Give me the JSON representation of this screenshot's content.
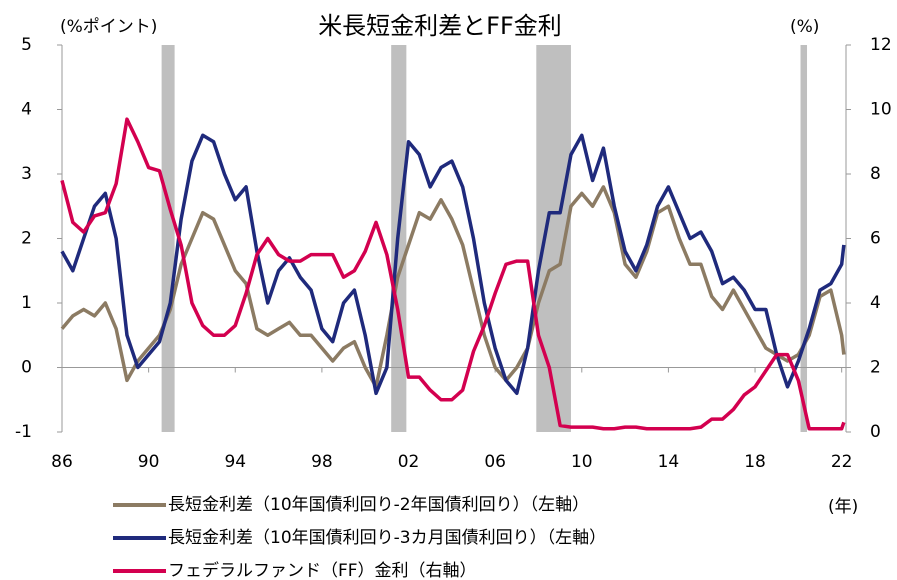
{
  "chart_data": {
    "type": "line",
    "title": "米長短金利差とFF金利",
    "y_label": "(%ポイント)",
    "y2_label": "(%)",
    "x_label": "(年)",
    "x": [
      1986,
      1986.5,
      1987,
      1987.5,
      1988,
      1988.5,
      1989,
      1989.5,
      1990,
      1990.5,
      1991,
      1991.5,
      1992,
      1992.5,
      1993,
      1993.5,
      1994,
      1994.5,
      1995,
      1995.5,
      1996,
      1996.5,
      1997,
      1997.5,
      1998,
      1998.5,
      1999,
      1999.5,
      2000,
      2000.5,
      2001,
      2001.5,
      2002,
      2002.5,
      2003,
      2003.5,
      2004,
      2004.5,
      2005,
      2005.5,
      2006,
      2006.5,
      2007,
      2007.5,
      2008,
      2008.5,
      2009,
      2009.5,
      2010,
      2010.5,
      2011,
      2011.5,
      2012,
      2012.5,
      2013,
      2013.5,
      2014,
      2014.5,
      2015,
      2015.5,
      2016,
      2016.5,
      2017,
      2017.5,
      2018,
      2018.5,
      2019,
      2019.5,
      2020,
      2020.5,
      2021,
      2021.5,
      2022,
      2022.1
    ],
    "series": [
      {
        "name": "長短金利差（10年国債利回り-2年国債利回り）（左軸）",
        "color": "#8c7b63",
        "axis": "y",
        "values": [
          0.6,
          0.8,
          0.9,
          0.8,
          1.0,
          0.6,
          -0.2,
          0.1,
          0.3,
          0.5,
          0.9,
          1.6,
          2.0,
          2.4,
          2.3,
          1.9,
          1.5,
          1.3,
          0.6,
          0.5,
          0.6,
          0.7,
          0.5,
          0.5,
          0.3,
          0.1,
          0.3,
          0.4,
          0.0,
          -0.3,
          0.5,
          1.4,
          1.9,
          2.4,
          2.3,
          2.6,
          2.3,
          1.9,
          1.2,
          0.5,
          0.0,
          -0.2,
          0.0,
          0.3,
          1.0,
          1.5,
          1.6,
          2.5,
          2.7,
          2.5,
          2.8,
          2.4,
          1.6,
          1.4,
          1.8,
          2.4,
          2.5,
          2.0,
          1.6,
          1.6,
          1.1,
          0.9,
          1.2,
          0.9,
          0.6,
          0.3,
          0.2,
          0.1,
          0.2,
          0.5,
          1.1,
          1.2,
          0.5,
          0.2
        ]
      },
      {
        "name": "長短金利差（10年国債利回り-3カ月国債利回り）（左軸）",
        "color": "#1f2a7c",
        "axis": "y",
        "values": [
          1.8,
          1.5,
          2.0,
          2.5,
          2.7,
          2.0,
          0.5,
          0.0,
          0.2,
          0.4,
          1.0,
          2.3,
          3.2,
          3.6,
          3.5,
          3.0,
          2.6,
          2.8,
          1.8,
          1.0,
          1.5,
          1.7,
          1.4,
          1.2,
          0.6,
          0.4,
          1.0,
          1.2,
          0.5,
          -0.4,
          0.0,
          2.0,
          3.5,
          3.3,
          2.8,
          3.1,
          3.2,
          2.8,
          2.0,
          1.0,
          0.3,
          -0.2,
          -0.4,
          0.3,
          1.5,
          2.4,
          2.4,
          3.3,
          3.6,
          2.9,
          3.4,
          2.5,
          1.8,
          1.5,
          1.9,
          2.5,
          2.8,
          2.4,
          2.0,
          2.1,
          1.8,
          1.3,
          1.4,
          1.2,
          0.9,
          0.9,
          0.2,
          -0.3,
          0.1,
          0.6,
          1.2,
          1.3,
          1.6,
          1.9
        ]
      },
      {
        "name": "フェデラルファンド（FF）金利（右軸）",
        "color": "#d3004f",
        "axis": "y2",
        "values": [
          7.8,
          6.5,
          6.2,
          6.7,
          6.8,
          7.7,
          9.7,
          9.0,
          8.2,
          8.1,
          6.9,
          5.8,
          4.0,
          3.3,
          3.0,
          3.0,
          3.3,
          4.3,
          5.5,
          6.0,
          5.5,
          5.3,
          5.3,
          5.5,
          5.5,
          5.5,
          4.8,
          5.0,
          5.6,
          6.5,
          5.5,
          3.8,
          1.7,
          1.7,
          1.3,
          1.0,
          1.0,
          1.3,
          2.5,
          3.3,
          4.3,
          5.2,
          5.3,
          5.3,
          3.0,
          2.0,
          0.2,
          0.15,
          0.15,
          0.15,
          0.1,
          0.1,
          0.15,
          0.15,
          0.1,
          0.1,
          0.1,
          0.1,
          0.1,
          0.15,
          0.4,
          0.4,
          0.7,
          1.15,
          1.4,
          1.9,
          2.4,
          2.4,
          1.6,
          0.1,
          0.1,
          0.1,
          0.1,
          0.3
        ]
      }
    ],
    "shaded_periods": [
      [
        1990.6,
        1991.2
      ],
      [
        2001.2,
        2001.9
      ],
      [
        2007.9,
        2009.5
      ],
      [
        2020.1,
        2020.4
      ]
    ],
    "shade_color": "#bfbfbf",
    "xlim": [
      1986,
      2022.2
    ],
    "xticks": [
      {
        "value": 1986,
        "label": "86"
      },
      {
        "value": 1990,
        "label": "90"
      },
      {
        "value": 1994,
        "label": "94"
      },
      {
        "value": 1998,
        "label": "98"
      },
      {
        "value": 2002,
        "label": "02"
      },
      {
        "value": 2006,
        "label": "06"
      },
      {
        "value": 2010,
        "label": "10"
      },
      {
        "value": 2014,
        "label": "14"
      },
      {
        "value": 2018,
        "label": "18"
      },
      {
        "value": 2022,
        "label": "22"
      }
    ],
    "ylim": [
      -1,
      5
    ],
    "yticks": [
      -1,
      0,
      1,
      2,
      3,
      4,
      5
    ],
    "y2lim": [
      0,
      12
    ],
    "y2ticks": [
      0,
      2,
      4,
      6,
      8,
      10,
      12
    ]
  }
}
